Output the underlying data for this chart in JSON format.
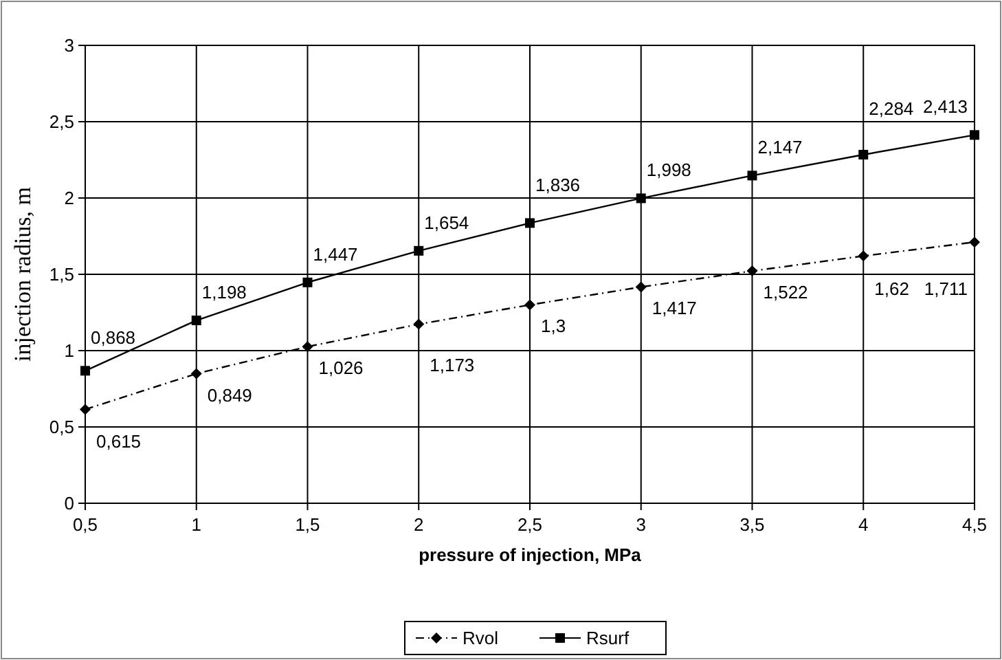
{
  "chart_data": {
    "type": "line",
    "xlabel": "pressure of injection, MPa",
    "ylabel": "injection radius, m",
    "x": [
      0.5,
      1,
      1.5,
      2,
      2.5,
      3,
      3.5,
      4,
      4.5
    ],
    "xlim": [
      0.5,
      4.5
    ],
    "xticks": [
      {
        "value": 0.5,
        "label": "0,5"
      },
      1,
      {
        "value": 1.5,
        "label": "1,5"
      },
      2,
      {
        "value": 2.5,
        "label": "2,5"
      },
      3,
      {
        "value": 3.5,
        "label": "3,5"
      },
      4,
      {
        "value": 4.5,
        "label": "4,5"
      }
    ],
    "ylim": [
      0,
      3
    ],
    "yticks": [
      0,
      {
        "value": 0.5,
        "label": "0,5"
      },
      1,
      {
        "value": 1.5,
        "label": "1,5"
      },
      2,
      {
        "value": 2.5,
        "label": "2,5"
      },
      3
    ],
    "grid": true,
    "legend": "bottom",
    "series": [
      {
        "name": "Rvol",
        "color": "#000000",
        "marker": "diamond",
        "line_style": "dashed",
        "values": [
          0.615,
          0.849,
          1.026,
          1.173,
          1.3,
          1.417,
          1.522,
          1.62,
          1.711
        ],
        "value_labels": [
          "0,615",
          "0,849",
          "1,026",
          "1,173",
          "1,3",
          "1,417",
          "1,522",
          "1,62",
          "1,711"
        ]
      },
      {
        "name": "Rsurf",
        "color": "#000000",
        "marker": "square",
        "line_style": "solid",
        "values": [
          0.868,
          1.198,
          1.447,
          1.654,
          1.836,
          1.998,
          2.147,
          2.284,
          2.413
        ],
        "value_labels": [
          "0,868",
          "1,198",
          "1,447",
          "1,654",
          "1,836",
          "1,998",
          "2,147",
          "2,284",
          "2,413"
        ]
      }
    ]
  }
}
